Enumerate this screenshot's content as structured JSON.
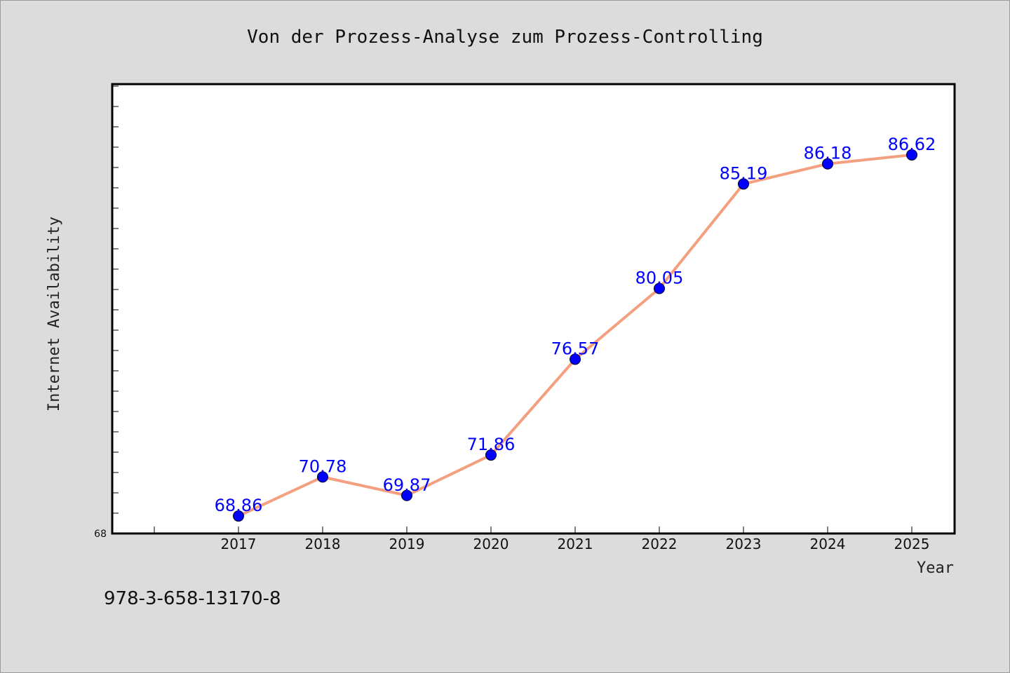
{
  "chart_data": {
    "type": "line",
    "title": "Von der Prozess-Analyse zum Prozess-Controlling",
    "xlabel": "Year",
    "ylabel": "Internet Availability",
    "x": [
      "2017",
      "2018",
      "2019",
      "2020",
      "2021",
      "2022",
      "2023",
      "2024",
      "2025"
    ],
    "series": [
      {
        "values": [
          68.86,
          70.78,
          69.87,
          71.86,
          76.57,
          80.05,
          85.19,
          86.18,
          86.62
        ],
        "labels": [
          "68.86",
          "70.78",
          "69.87",
          "71.86",
          "76.57",
          "80.05",
          "85.19",
          "86.18",
          "86.62"
        ]
      }
    ],
    "ylim": [
      68,
      90
    ],
    "yticks_labeled": [
      "68"
    ],
    "grid": false,
    "line_color": "#f4a080",
    "marker_color": "#0000ff",
    "label_color": "#0000ff",
    "background": "#dcdcdc",
    "plot_background": "#ffffff"
  },
  "footer": {
    "isbn": "978-3-658-13170-8"
  }
}
